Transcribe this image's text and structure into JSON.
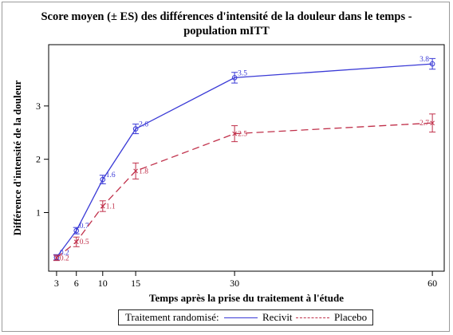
{
  "chart_data": {
    "type": "line",
    "title_line1": "Score moyen (± ES) des différences d'intensité de la douleur dans le temps -",
    "title_line2": "population mITT",
    "xlabel": "Temps après la prise du traitement à l'étude",
    "ylabel": "Différence d'intensité de la douleur",
    "x": [
      3,
      6,
      10,
      15,
      30,
      60
    ],
    "x_ticks": [
      3,
      6,
      10,
      15,
      30,
      60
    ],
    "y_ticks": [
      1,
      2,
      3
    ],
    "xlim": [
      1.8,
      61.8
    ],
    "ylim": [
      -0.1,
      4.15
    ],
    "series": [
      {
        "name": "Recivit",
        "color": "#3a3ad6",
        "dash": "solid",
        "marker": "circle",
        "values": [
          0.16,
          0.66,
          1.62,
          2.57,
          3.53,
          3.79
        ],
        "errors": [
          0.05,
          0.06,
          0.08,
          0.09,
          0.1,
          0.1
        ],
        "labels": [
          "0.2",
          "0.7",
          "1.6",
          "2.6",
          "3.5",
          "3.8"
        ]
      },
      {
        "name": "Placebo",
        "color": "#c0304a",
        "dash": "dashed",
        "marker": "x",
        "values": [
          0.15,
          0.45,
          1.12,
          1.78,
          2.48,
          2.68
        ],
        "errors": [
          0.05,
          0.09,
          0.1,
          0.15,
          0.15,
          0.17
        ],
        "labels": [
          "0.2",
          "0.5",
          "1.1",
          "1.8",
          "2.5",
          "2.7"
        ]
      }
    ],
    "legend": {
      "title": "Traitement randomisé:",
      "position": "bottom"
    }
  }
}
